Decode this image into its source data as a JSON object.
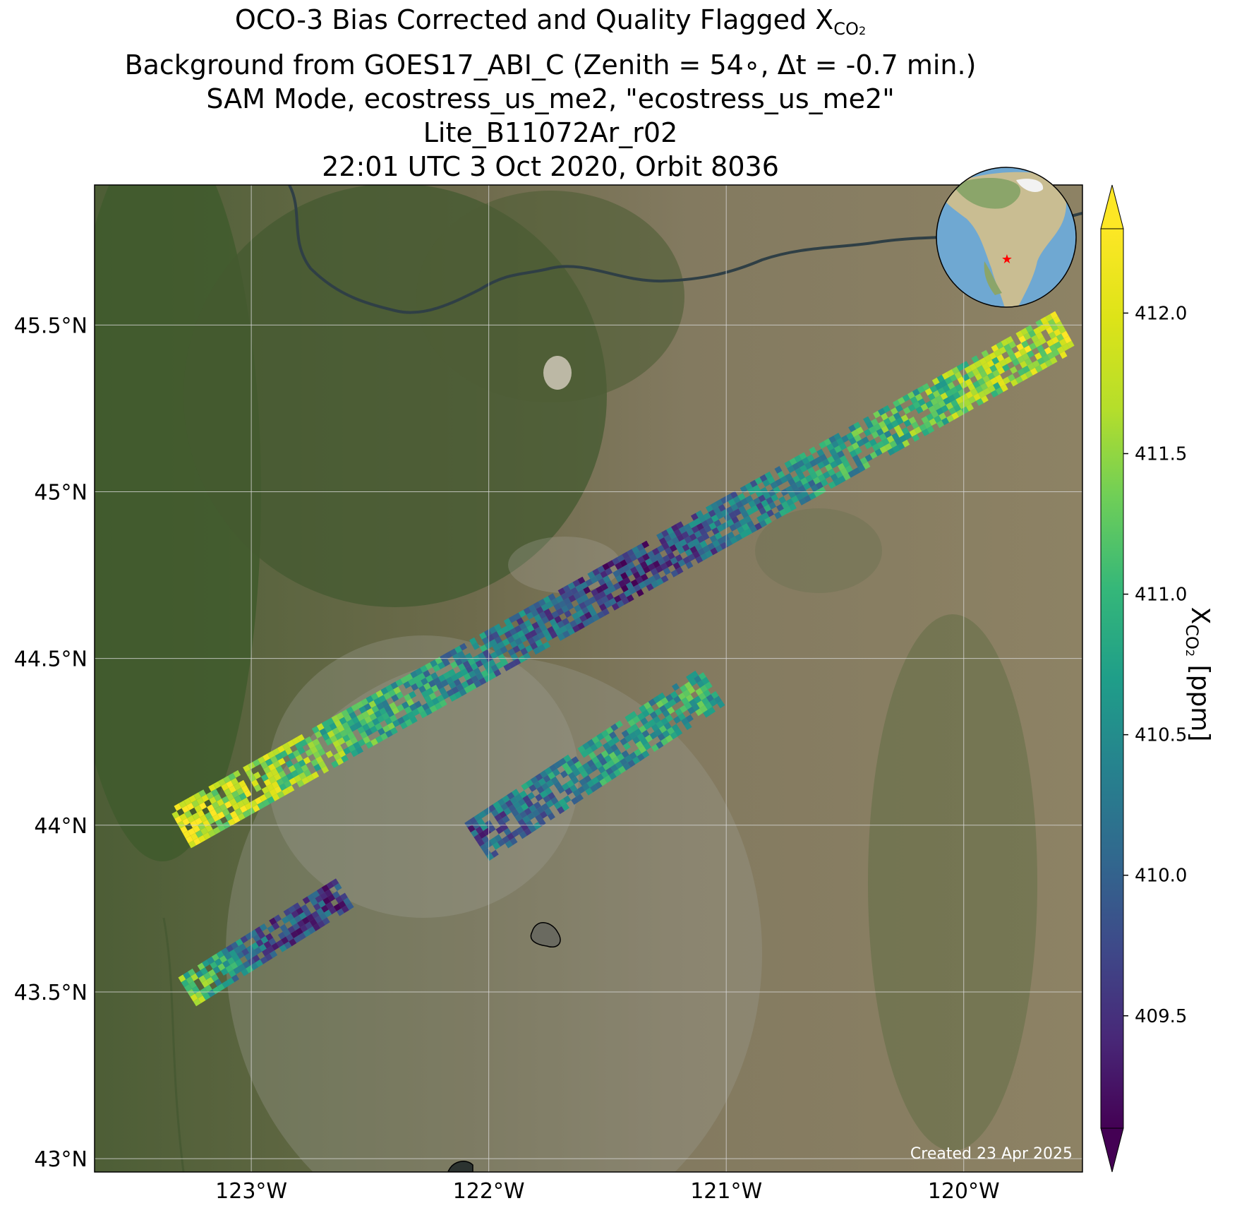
{
  "title": {
    "line1_prefix": "OCO-3 Bias Corrected and Quality Flagged X",
    "line1_sub": "CO",
    "line1_sub2": "2",
    "line2": "Background from GOES17_ABI_C (Zenith = 54∘, Δt = -0.7 min.)",
    "line3": "SAM Mode, ecostress_us_me2, \"ecostress_us_me2\"",
    "line4": "Lite_B11072Ar_r02",
    "line5": "22:01 UTC 3 Oct 2020, Orbit 8036"
  },
  "map": {
    "lon_range": [
      -123.66,
      -119.5
    ],
    "lat_range": [
      42.96,
      45.92
    ],
    "lon_ticks": [
      {
        "value": -123,
        "label": "123°W"
      },
      {
        "value": -122,
        "label": "122°W"
      },
      {
        "value": -121,
        "label": "121°W"
      },
      {
        "value": -120,
        "label": "120°W"
      }
    ],
    "lat_ticks": [
      {
        "value": 45.5,
        "label": "45.5°N"
      },
      {
        "value": 45.0,
        "label": "45°N"
      },
      {
        "value": 44.5,
        "label": "44.5°N"
      },
      {
        "value": 44.0,
        "label": "44°N"
      },
      {
        "value": 43.5,
        "label": "43.5°N"
      },
      {
        "value": 43.0,
        "label": "43°N"
      }
    ],
    "gridlines": true,
    "background": "satellite imagery (forest west, arid plateau east, smoke plume centre)",
    "inset_globe": {
      "position": "top-right",
      "marker": "red star",
      "marker_color": "#ff0000",
      "ocean_color": "#6fa8d2"
    },
    "created_label": "Created 23 Apr 2025"
  },
  "colorbar": {
    "colormap": "viridis",
    "range": [
      409.1,
      412.3
    ],
    "extend": "both",
    "ticks": [
      {
        "value": 409.5,
        "label": "409.5"
      },
      {
        "value": 410.0,
        "label": "410.0"
      },
      {
        "value": 410.5,
        "label": "410.5"
      },
      {
        "value": 411.0,
        "label": "411.0"
      },
      {
        "value": 411.5,
        "label": "411.5"
      },
      {
        "value": 412.0,
        "label": "412.0"
      }
    ],
    "label_prefix": "X",
    "label_sub": "CO",
    "label_sub2": "2",
    "label_suffix": " [ppm]"
  },
  "chart_data": {
    "type": "heatmap",
    "variable": "XCO2",
    "units": "ppm",
    "swaths": [
      {
        "id": "main",
        "lon_start": -123.3,
        "lat_start": 43.99,
        "lon_end": -119.55,
        "lat_end": 45.49,
        "across_deg": 0.07,
        "value_start": 412.0,
        "value_mid": 409.6,
        "value_end": 411.9
      },
      {
        "id": "south-east",
        "lon_start": -122.05,
        "lat_start": 43.95,
        "lon_end": -121.05,
        "lat_end": 44.42,
        "across_deg": 0.06,
        "value_start": 409.9,
        "value_mid": 410.6,
        "value_end": 410.9
      },
      {
        "id": "south-west",
        "lon_start": -123.27,
        "lat_start": 43.5,
        "lon_end": -122.6,
        "lat_end": 43.8,
        "across_deg": 0.05,
        "value_start": 411.3,
        "value_mid": 409.8,
        "value_end": 409.7
      }
    ]
  }
}
